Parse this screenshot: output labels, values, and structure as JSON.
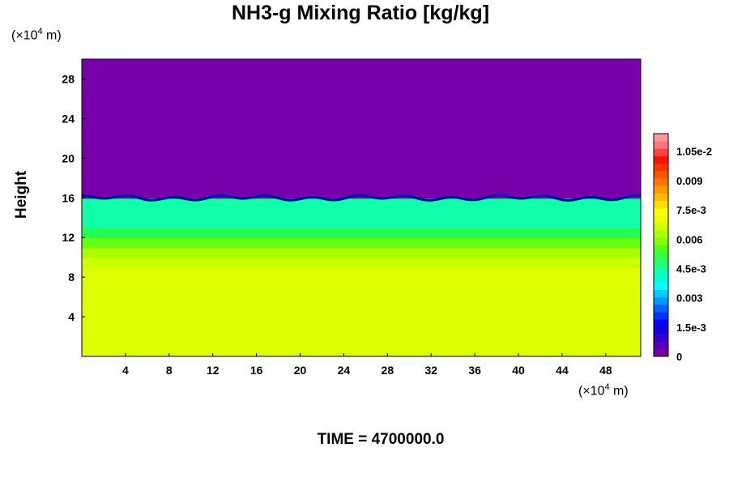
{
  "chart_data": {
    "type": "heatmap",
    "title": "NH3-g Mixing Ratio [kg/kg]",
    "ylabel": "Height",
    "x_unit": {
      "prefix": "(×10",
      "exp": "4",
      "suffix": " m)"
    },
    "y_unit": {
      "prefix": "(×10",
      "exp": "4",
      "suffix": " m)"
    },
    "xlim": [
      0,
      51.2
    ],
    "ylim": [
      0,
      30
    ],
    "x_ticks": [
      4,
      8,
      12,
      16,
      20,
      24,
      28,
      32,
      36,
      40,
      44,
      48
    ],
    "y_ticks": [
      4,
      8,
      12,
      16,
      20,
      24,
      28
    ],
    "layers": [
      {
        "y_bottom": 0,
        "y_top": 9,
        "value": 0.0075,
        "color": "#ddff00"
      },
      {
        "y_bottom": 9,
        "y_top": 10,
        "value": 0.0071,
        "color": "#ccff00"
      },
      {
        "y_bottom": 10,
        "y_top": 11,
        "value": 0.0066,
        "color": "#aaff00"
      },
      {
        "y_bottom": 11,
        "y_top": 12,
        "value": 0.006,
        "color": "#66ff11"
      },
      {
        "y_bottom": 12,
        "y_top": 13,
        "value": 0.0054,
        "color": "#22ff55"
      },
      {
        "y_bottom": 13,
        "y_top": 16,
        "value": 0.0045,
        "color": "#11ffaa"
      },
      {
        "y_bottom": 16,
        "y_top": 30,
        "value": 0,
        "color": "#7700aa"
      }
    ],
    "colorbar": {
      "vmin": 0,
      "vmax": 0.0114,
      "labels": [
        {
          "value": 0,
          "text": "0"
        },
        {
          "value": 0.0015,
          "text": "1.5e-3"
        },
        {
          "value": 0.003,
          "text": "0.003"
        },
        {
          "value": 0.0045,
          "text": "4.5e-3"
        },
        {
          "value": 0.006,
          "text": "0.006"
        },
        {
          "value": 0.0075,
          "text": "7.5e-3"
        },
        {
          "value": 0.009,
          "text": "0.009"
        },
        {
          "value": 0.0105,
          "text": "1.05e-2"
        }
      ],
      "colors": [
        "#7700aa",
        "#5500bb",
        "#3300cc",
        "#1100dd",
        "#0000ff",
        "#0033ff",
        "#0066ff",
        "#0099ff",
        "#00ccff",
        "#00ffff",
        "#00ffcc",
        "#11ffaa",
        "#22ff77",
        "#33ff44",
        "#55ff11",
        "#88ff00",
        "#aaff00",
        "#ccff00",
        "#eeff00",
        "#ffff00",
        "#ffdd00",
        "#ffbb00",
        "#ff9900",
        "#ff7700",
        "#ff5500",
        "#ff3300",
        "#ff1100",
        "#ff4444",
        "#ff7777",
        "#ff9999"
      ]
    }
  },
  "time_label": "TIME = ",
  "time_value": "4700000.0"
}
